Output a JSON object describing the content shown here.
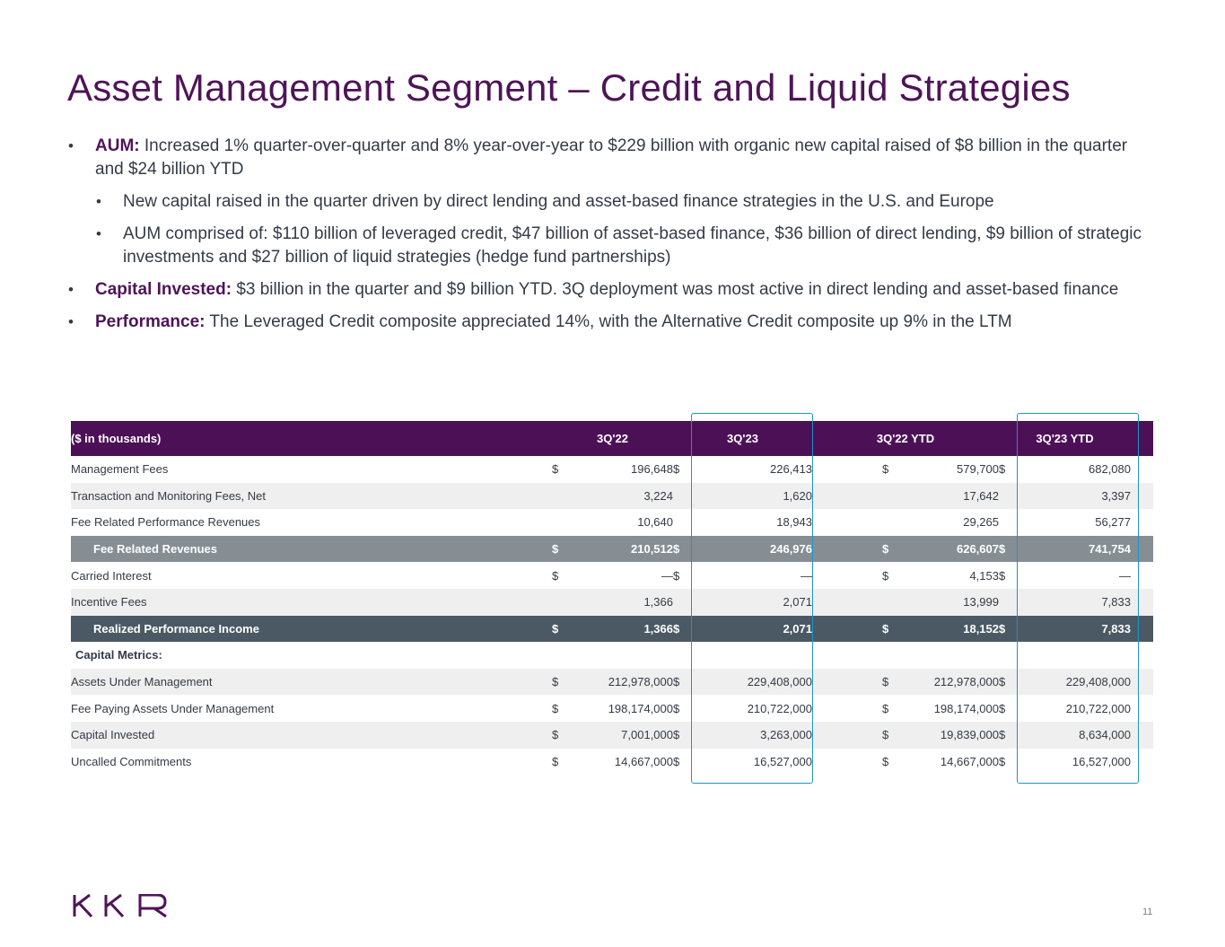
{
  "title": "Asset Management Segment – Credit and Liquid Strategies",
  "bullets": [
    {
      "bold": "AUM:",
      "text": " Increased 1% quarter-over-quarter and 8% year-over-year to $229 billion with organic new capital raised of $8 billion in the quarter and $24 billion YTD"
    },
    {
      "text": "New capital raised in the quarter driven by direct lending and asset-based finance strategies in the U.S. and Europe"
    },
    {
      "text": "AUM comprised of: $110 billion of leveraged credit, $47 billion of asset-based finance, $36 billion of direct lending, $9 billion of strategic investments and $27 billion of liquid strategies (hedge fund partnerships)"
    },
    {
      "bold": "Capital Invested:",
      "text": " $3 billion in the quarter and $9 billion YTD. 3Q deployment was most active in direct lending and asset-based finance"
    },
    {
      "bold": "Performance:",
      "text": " The Leveraged Credit composite appreciated 14%, with the Alternative Credit composite up 9% in the LTM"
    }
  ],
  "table": {
    "header": {
      "label": "($ in thousands)",
      "c1": "3Q'22",
      "c2": "3Q'23",
      "c3": "3Q'22 YTD",
      "c4": "3Q'23 YTD"
    },
    "rows": [
      {
        "label": "Management Fees",
        "s1": "$",
        "v1": "196,648",
        "s2": "$",
        "v2": "226,413",
        "s3": "$",
        "v3": "579,700",
        "s4": "$",
        "v4": "682,080"
      },
      {
        "label": "Transaction and Monitoring Fees, Net",
        "v1": "3,224",
        "v2": "1,620",
        "v3": "17,642",
        "v4": "3,397"
      },
      {
        "label": "Fee Related Performance Revenues",
        "v1": "10,640",
        "v2": "18,943",
        "v3": "29,265",
        "v4": "56,277"
      },
      {
        "label": "Fee Related Revenues",
        "s1": "$",
        "v1": "210,512",
        "s2": "$",
        "v2": "246,976",
        "s3": "$",
        "v3": "626,607",
        "s4": "$",
        "v4": "741,754"
      },
      {
        "label": "Carried Interest",
        "s1": "$",
        "v1": "—",
        "s2": "$",
        "v2": "—",
        "s3": "$",
        "v3": "4,153",
        "s4": "$",
        "v4": "—"
      },
      {
        "label": "Incentive Fees",
        "v1": "1,366",
        "v2": "2,071",
        "v3": "13,999",
        "v4": "7,833"
      },
      {
        "label": "Realized Performance Income",
        "s1": "$",
        "v1": "1,366",
        "s2": "$",
        "v2": "2,071",
        "s3": "$",
        "v3": "18,152",
        "s4": "$",
        "v4": "7,833"
      },
      {
        "label": "Capital Metrics:"
      },
      {
        "label": "Assets Under Management",
        "s1": "$",
        "v1": "212,978,000",
        "s2": "$",
        "v2": "229,408,000",
        "s3": "$",
        "v3": "212,978,000",
        "s4": "$",
        "v4": "229,408,000"
      },
      {
        "label": "Fee Paying Assets Under Management",
        "s1": "$",
        "v1": "198,174,000",
        "s2": "$",
        "v2": "210,722,000",
        "s3": "$",
        "v3": "198,174,000",
        "s4": "$",
        "v4": "210,722,000"
      },
      {
        "label": "Capital Invested",
        "s1": "$",
        "v1": "7,001,000",
        "s2": "$",
        "v2": "3,263,000",
        "s3": "$",
        "v3": "19,839,000",
        "s4": "$",
        "v4": "8,634,000"
      },
      {
        "label": "Uncalled Commitments",
        "s1": "$",
        "v1": "14,667,000",
        "s2": "$",
        "v2": "16,527,000",
        "s3": "$",
        "v3": "14,667,000",
        "s4": "$",
        "v4": "16,527,000"
      }
    ]
  },
  "colors": {
    "brand_purple": "#4f1458",
    "highlight_blue": "#1e94c9",
    "subtotal_gray": "#868e94",
    "total_slate": "#4a5964"
  },
  "logo": {
    "text": "KKR"
  },
  "page_number": "11"
}
